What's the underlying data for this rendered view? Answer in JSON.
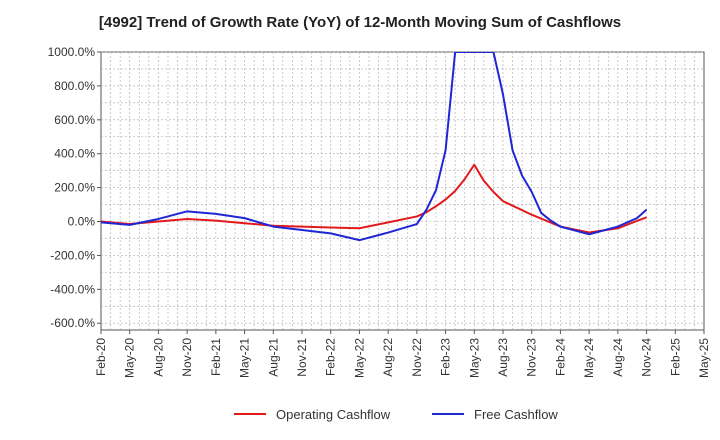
{
  "chart_data": {
    "type": "line",
    "title": "[4992]  Trend of Growth Rate (YoY) of 12-Month Moving Sum of Cashflows",
    "xlabel": "",
    "ylabel": "",
    "ylim": [
      -640,
      1000
    ],
    "yticks": [
      "1000.0%",
      "800.0%",
      "600.0%",
      "400.0%",
      "200.0%",
      "0.0%",
      "-200.0%",
      "-400.0%",
      "-600.0%"
    ],
    "ytick_values": [
      1000,
      800,
      600,
      400,
      200,
      0,
      -200,
      -400,
      -600
    ],
    "x_range": [
      "Feb-20",
      "May-25"
    ],
    "xticks": [
      "Feb-20",
      "May-20",
      "Aug-20",
      "Nov-20",
      "Feb-21",
      "May-21",
      "Aug-21",
      "Nov-21",
      "Feb-22",
      "May-22",
      "Aug-22",
      "Nov-22",
      "Feb-23",
      "May-23",
      "Aug-23",
      "Nov-23",
      "Feb-24",
      "May-24",
      "Aug-24",
      "Nov-24",
      "Feb-25",
      "May-25"
    ],
    "grid": true,
    "legend_position": "bottom",
    "series": [
      {
        "name": "Operating Cashflow",
        "color": "#e31a1c",
        "points": [
          [
            "Feb-20",
            0
          ],
          [
            "May-20",
            -15
          ],
          [
            "Aug-20",
            0
          ],
          [
            "Nov-20",
            15
          ],
          [
            "Feb-21",
            5
          ],
          [
            "May-21",
            -10
          ],
          [
            "Aug-21",
            -25
          ],
          [
            "Nov-21",
            -30
          ],
          [
            "Feb-22",
            -35
          ],
          [
            "May-22",
            -40
          ],
          [
            "Aug-22",
            -5
          ],
          [
            "Nov-22",
            30
          ],
          [
            "Dec-22",
            55
          ],
          [
            "Jan-23",
            90
          ],
          [
            "Feb-23",
            130
          ],
          [
            "Mar-23",
            180
          ],
          [
            "Apr-23",
            250
          ],
          [
            "May-23",
            335
          ],
          [
            "Jun-23",
            240
          ],
          [
            "Jul-23",
            175
          ],
          [
            "Aug-23",
            120
          ],
          [
            "Nov-23",
            40
          ],
          [
            "Feb-24",
            -30
          ],
          [
            "May-24",
            -65
          ],
          [
            "Aug-24",
            -40
          ],
          [
            "Nov-24",
            25
          ]
        ]
      },
      {
        "name": "Free Cashflow",
        "color": "#1f26d4",
        "points": [
          [
            "Feb-20",
            -5
          ],
          [
            "May-20",
            -20
          ],
          [
            "Aug-20",
            15
          ],
          [
            "Nov-20",
            60
          ],
          [
            "Feb-21",
            45
          ],
          [
            "May-21",
            20
          ],
          [
            "Aug-21",
            -30
          ],
          [
            "Nov-21",
            -50
          ],
          [
            "Feb-22",
            -70
          ],
          [
            "May-22",
            -110
          ],
          [
            "Aug-22",
            -65
          ],
          [
            "Nov-22",
            -15
          ],
          [
            "Dec-22",
            70
          ],
          [
            "Jan-23",
            185
          ],
          [
            "Feb-23",
            420
          ],
          [
            "Mar-23",
            1000
          ],
          [
            "Jul-23",
            1000
          ],
          [
            "Aug-23",
            750
          ],
          [
            "Sep-23",
            420
          ],
          [
            "Oct-23",
            270
          ],
          [
            "Nov-23",
            175
          ],
          [
            "Dec-23",
            50
          ],
          [
            "Jan-24",
            5
          ],
          [
            "Feb-24",
            -30
          ],
          [
            "May-24",
            -75
          ],
          [
            "Aug-24",
            -30
          ],
          [
            "Oct-24",
            20
          ],
          [
            "Nov-24",
            70
          ]
        ]
      }
    ]
  }
}
